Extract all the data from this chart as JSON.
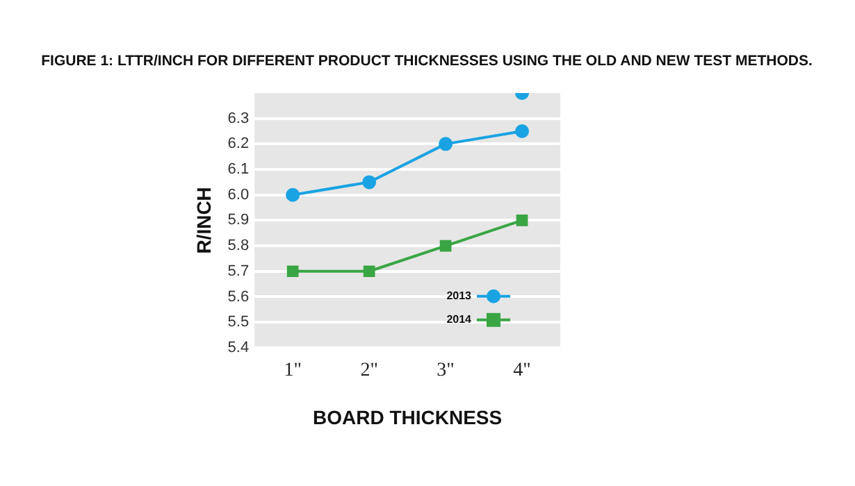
{
  "chart_data": {
    "type": "line",
    "title": "FIGURE 1: LTTR/INCH FOR DIFFERENT PRODUCT THICKNESSES USING THE OLD AND NEW TEST METHODS.",
    "xlabel": "BOARD THICKNESS",
    "ylabel": "R/INCH",
    "categories": [
      "1\"",
      "2\"",
      "3\"",
      "4\""
    ],
    "series": [
      {
        "name": "2013",
        "color": "#1aa3e3",
        "marker": "circle",
        "values": [
          6.0,
          6.05,
          6.2,
          6.25
        ]
      },
      {
        "name": "2014",
        "color": "#3aa543",
        "marker": "square",
        "values": [
          5.7,
          5.7,
          5.8,
          5.9
        ]
      },
      {
        "type": "scatter",
        "color": "#1aa3e3",
        "marker": "circle",
        "values": [
          null,
          null,
          null,
          6.4
        ]
      }
    ],
    "ylim": [
      5.4,
      6.4
    ],
    "yticks": [
      5.4,
      5.5,
      5.6,
      5.7,
      5.8,
      5.9,
      {
        "value": 6,
        "label": "6.0"
      },
      6.1,
      6.2,
      6.3
    ],
    "grid": "y",
    "legend": "bottom right"
  }
}
